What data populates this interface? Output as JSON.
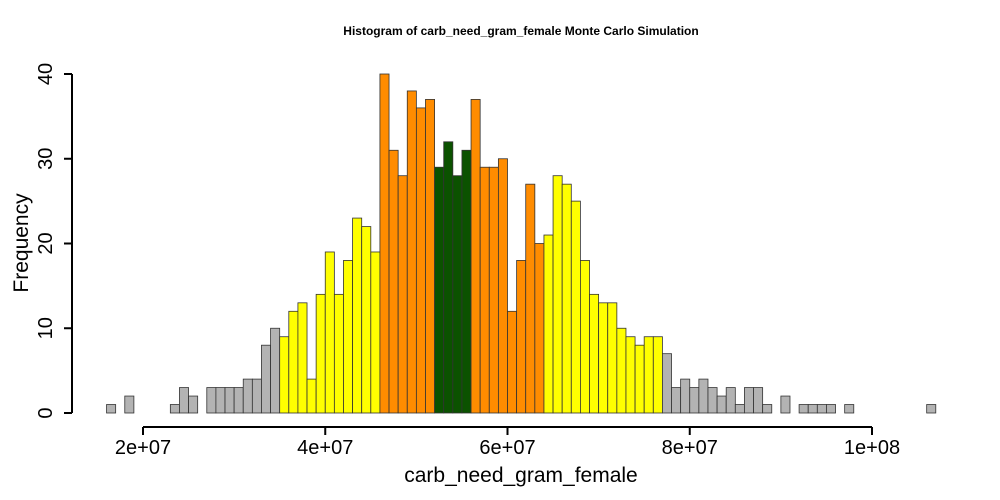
{
  "chart_data": {
    "type": "bar",
    "title": "Histogram of  carb_need_gram_female  Monte Carlo Simulation",
    "xlabel": "carb_need_gram_female",
    "ylabel": "Frequency",
    "xlim": [
      16000000,
      107000000
    ],
    "ylim": [
      0,
      40
    ],
    "bin_width": 1000000,
    "bin_start": 16000000,
    "x_ticks": [
      {
        "value": 20000000,
        "label": "2e+07"
      },
      {
        "value": 40000000,
        "label": "4e+07"
      },
      {
        "value": 60000000,
        "label": "6e+07"
      },
      {
        "value": 80000000,
        "label": "8e+07"
      },
      {
        "value": 100000000,
        "label": "1e+08"
      }
    ],
    "y_ticks": [
      {
        "value": 0,
        "label": "0"
      },
      {
        "value": 10,
        "label": "10"
      },
      {
        "value": 20,
        "label": "20"
      },
      {
        "value": 30,
        "label": "30"
      },
      {
        "value": 40,
        "label": "40"
      }
    ],
    "colors": {
      "gray": "#b3b3b3",
      "yellow": "#ffff00",
      "orange": "#ff8c00",
      "green": "#0b5200"
    },
    "values": [
      1,
      0,
      2,
      0,
      0,
      0,
      0,
      1,
      3,
      2,
      0,
      3,
      3,
      3,
      3,
      4,
      4,
      8,
      10,
      9,
      12,
      13,
      4,
      14,
      19,
      14,
      18,
      23,
      22,
      19,
      40,
      31,
      28,
      38,
      36,
      37,
      29,
      32,
      28,
      31,
      37,
      29,
      29,
      30,
      12,
      18,
      27,
      20,
      21,
      28,
      27,
      25,
      18,
      14,
      13,
      13,
      10,
      9,
      8,
      9,
      9,
      7,
      3,
      4,
      3,
      4,
      3,
      2,
      3,
      1,
      3,
      3,
      1,
      0,
      2,
      0,
      1,
      1,
      1,
      1,
      0,
      1,
      0,
      0,
      0,
      0,
      0,
      0,
      0,
      0,
      1
    ],
    "bar_colors": [
      "gray",
      "gray",
      "gray",
      "gray",
      "gray",
      "gray",
      "gray",
      "gray",
      "gray",
      "gray",
      "gray",
      "gray",
      "gray",
      "gray",
      "gray",
      "gray",
      "gray",
      "gray",
      "gray",
      "yellow",
      "yellow",
      "yellow",
      "yellow",
      "yellow",
      "yellow",
      "yellow",
      "yellow",
      "yellow",
      "yellow",
      "yellow",
      "orange",
      "orange",
      "orange",
      "orange",
      "orange",
      "orange",
      "green",
      "green",
      "green",
      "green",
      "orange",
      "orange",
      "orange",
      "orange",
      "orange",
      "orange",
      "orange",
      "orange",
      "yellow",
      "yellow",
      "yellow",
      "yellow",
      "yellow",
      "yellow",
      "yellow",
      "yellow",
      "yellow",
      "yellow",
      "yellow",
      "yellow",
      "yellow",
      "gray",
      "gray",
      "gray",
      "gray",
      "gray",
      "gray",
      "gray",
      "gray",
      "gray",
      "gray",
      "gray",
      "gray",
      "gray",
      "gray",
      "gray",
      "gray",
      "gray",
      "gray",
      "gray",
      "gray",
      "gray",
      "gray",
      "gray",
      "gray",
      "gray",
      "gray",
      "gray",
      "gray",
      "gray",
      "gray"
    ],
    "grid": false
  }
}
